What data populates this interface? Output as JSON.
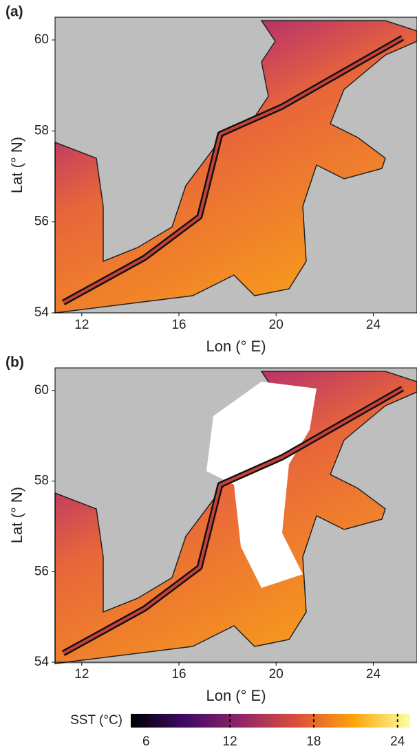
{
  "panels": [
    {
      "label": "(a)",
      "xlabel": "Lon (° E)",
      "ylabel": "Lat (° N)",
      "xlim": [
        10.9,
        25.8
      ],
      "ylim": [
        54,
        60.5
      ],
      "xticks": [
        12,
        16,
        20,
        24
      ],
      "yticks": [
        54,
        56,
        58,
        60
      ]
    },
    {
      "label": "(b)",
      "xlabel": "Lon (° E)",
      "ylabel": "Lat (° N)",
      "xlim": [
        10.9,
        25.8
      ],
      "ylim": [
        54,
        60.5
      ],
      "xticks": [
        12,
        16,
        20,
        24
      ],
      "yticks": [
        54,
        56,
        58,
        60
      ]
    }
  ],
  "colorbar": {
    "label": "SST (°C)",
    "lim": [
      4.9,
      24.9
    ],
    "ticks": [
      6,
      12,
      18,
      24
    ]
  }
}
